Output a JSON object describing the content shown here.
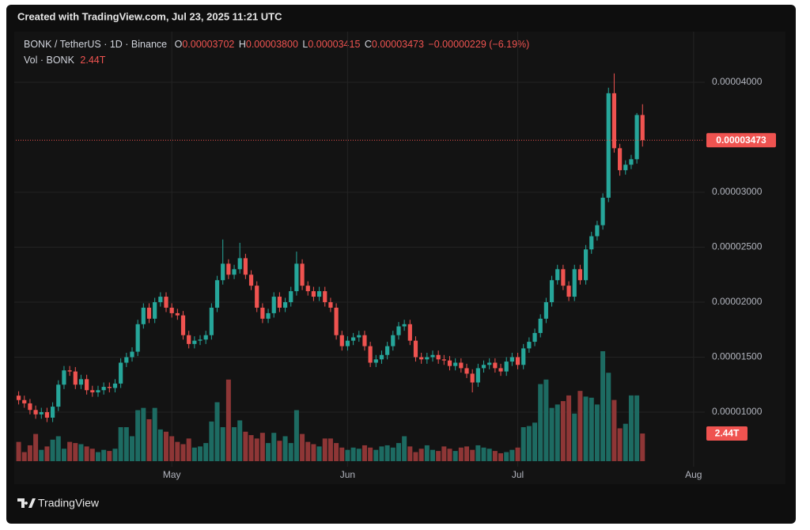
{
  "banner": "Created with TradingView.com, Jul 23, 2025 11:21 UTC",
  "footer": "TradingView",
  "chart_data": {
    "type": "candlestick",
    "symbol": "BONK / TetherUS · 1D · Binance",
    "ohlc_labels": [
      "O",
      "H",
      "L",
      "C"
    ],
    "last_bar_labels": {
      "open": "0.00003702",
      "high": "0.00003800",
      "low": "0.00003415",
      "close": "0.00003473"
    },
    "change": "−0.00000229 (−6.19%)",
    "up_color": "#26a69a",
    "down_color": "#ef5350",
    "grid": true,
    "xlim": [
      -0.5,
      120.7
    ],
    "xticks": [
      {
        "value": 27,
        "label": "May"
      },
      {
        "value": 58,
        "label": "Jun"
      },
      {
        "value": 88,
        "label": "Jul"
      },
      {
        "value": 119,
        "label": "Aug"
      }
    ],
    "ylim": [
      5.04e-06,
      4.46e-05
    ],
    "yticks": [
      {
        "value": 1e-05,
        "label": "0.00001000"
      },
      {
        "value": 1.5e-05,
        "label": "0.00001500"
      },
      {
        "value": 2e-05,
        "label": "0.00002000"
      },
      {
        "value": 2.5e-05,
        "label": "0.00002500"
      },
      {
        "value": 3e-05,
        "label": "0.00003000"
      },
      {
        "value": 4e-05,
        "label": "0.00004000"
      }
    ],
    "open": [
      1.15e-05,
      1.11e-05,
      1.08e-05,
      1.02e-05,
      9.8e-06,
      1e-05,
      9.5e-06,
      1.05e-05,
      1.25e-05,
      1.38e-05,
      1.37e-05,
      1.25e-05,
      1.3e-05,
      1.2e-05,
      1.18e-05,
      1.2e-05,
      1.23e-05,
      1.22e-05,
      1.26e-05,
      1.45e-05,
      1.5e-05,
      1.55e-05,
      1.8e-05,
      1.95e-05,
      1.85e-05,
      2e-05,
      2.05e-05,
      1.95e-05,
      1.9e-05,
      1.88e-05,
      1.7e-05,
      1.62e-05,
      1.65e-05,
      1.66e-05,
      1.7e-05,
      1.95e-05,
      2.2e-05,
      2.35e-05,
      2.25e-05,
      2.3e-05,
      2.4e-05,
      2.25e-05,
      2.15e-05,
      1.95e-05,
      1.85e-05,
      1.9e-05,
      2.05e-05,
      1.95e-05,
      2e-05,
      2.1e-05,
      2.35e-05,
      2.15e-05,
      2.1e-05,
      2.05e-05,
      2.1e-05,
      2e-05,
      1.95e-05,
      1.7e-05,
      1.6e-05,
      1.65e-05,
      1.68e-05,
      1.7e-05,
      1.6e-05,
      1.45e-05,
      1.48e-05,
      1.52e-05,
      1.6e-05,
      1.7e-05,
      1.78e-05,
      1.8e-05,
      1.65e-05,
      1.5e-05,
      1.48e-05,
      1.5e-05,
      1.52e-05,
      1.48e-05,
      1.47e-05,
      1.42e-05,
      1.45e-05,
      1.4e-05,
      1.35e-05,
      1.27e-05,
      1.4e-05,
      1.43e-05,
      1.45e-05,
      1.4e-05,
      1.37e-05,
      1.46e-05,
      1.5e-05,
      1.43e-05,
      1.58e-05,
      1.64e-05,
      1.72e-05,
      1.85e-05,
      2e-05,
      2.2e-05,
      2.3e-05,
      2.15e-05,
      2.05e-05,
      2.3e-05,
      2.2e-05,
      2.48e-05,
      2.6e-05,
      2.7e-05,
      2.95e-05,
      3.9e-05,
      3.4e-05,
      3.2e-05,
      3.25e-05,
      3.3e-05,
      3.702e-05
    ],
    "high": [
      1.19e-05,
      1.15e-05,
      1.12e-05,
      1.06e-05,
      1.04e-05,
      1.04e-05,
      1.09e-05,
      1.29e-05,
      1.42e-05,
      1.42e-05,
      1.41e-05,
      1.34e-05,
      1.34e-05,
      1.24e-05,
      1.24e-05,
      1.27e-05,
      1.27e-05,
      1.3e-05,
      1.49e-05,
      1.54e-05,
      1.59e-05,
      1.84e-05,
      1.99e-05,
      1.99e-05,
      2.04e-05,
      2.09e-05,
      2.09e-05,
      1.99e-05,
      1.94e-05,
      1.92e-05,
      1.74e-05,
      1.69e-05,
      1.7e-05,
      1.74e-05,
      1.99e-05,
      2.24e-05,
      2.57e-05,
      2.39e-05,
      2.34e-05,
      2.54e-05,
      2.44e-05,
      2.29e-05,
      2.19e-05,
      1.99e-05,
      1.94e-05,
      2.09e-05,
      2.09e-05,
      2.04e-05,
      2.14e-05,
      2.46e-05,
      2.39e-05,
      2.19e-05,
      2.14e-05,
      2.14e-05,
      2.14e-05,
      2.04e-05,
      1.99e-05,
      1.74e-05,
      1.69e-05,
      1.72e-05,
      1.74e-05,
      1.74e-05,
      1.64e-05,
      1.52e-05,
      1.56e-05,
      1.64e-05,
      1.74e-05,
      1.82e-05,
      1.84e-05,
      1.84e-05,
      1.69e-05,
      1.54e-05,
      1.54e-05,
      1.56e-05,
      1.56e-05,
      1.52e-05,
      1.51e-05,
      1.49e-05,
      1.49e-05,
      1.44e-05,
      1.39e-05,
      1.44e-05,
      1.47e-05,
      1.49e-05,
      1.49e-05,
      1.44e-05,
      1.5e-05,
      1.54e-05,
      1.54e-05,
      1.62e-05,
      1.68e-05,
      1.76e-05,
      1.89e-05,
      2.04e-05,
      2.24e-05,
      2.34e-05,
      2.34e-05,
      2.19e-05,
      2.34e-05,
      2.34e-05,
      2.52e-05,
      2.64e-05,
      2.74e-05,
      2.99e-05,
      3.95e-05,
      4.08e-05,
      3.44e-05,
      3.29e-05,
      3.34e-05,
      3.72e-05,
      3.8e-05
    ],
    "low": [
      1.07e-05,
      1.04e-05,
      9.8e-06,
      9.4e-06,
      9.4e-06,
      9.1e-06,
      9.1e-06,
      1.01e-05,
      1.21e-05,
      1.33e-05,
      1.21e-05,
      1.21e-05,
      1.16e-05,
      1.14e-05,
      1.14e-05,
      1.16e-05,
      1.18e-05,
      1.18e-05,
      1.22e-05,
      1.41e-05,
      1.46e-05,
      1.51e-05,
      1.76e-05,
      1.81e-05,
      1.81e-05,
      1.96e-05,
      1.91e-05,
      1.86e-05,
      1.84e-05,
      1.66e-05,
      1.58e-05,
      1.58e-05,
      1.61e-05,
      1.62e-05,
      1.66e-05,
      1.91e-05,
      2.16e-05,
      2.21e-05,
      2.21e-05,
      2.26e-05,
      2.21e-05,
      2.11e-05,
      1.91e-05,
      1.81e-05,
      1.81e-05,
      1.86e-05,
      1.91e-05,
      1.91e-05,
      1.96e-05,
      2.06e-05,
      2.11e-05,
      2.06e-05,
      2.01e-05,
      2.01e-05,
      1.96e-05,
      1.91e-05,
      1.66e-05,
      1.56e-05,
      1.56e-05,
      1.61e-05,
      1.64e-05,
      1.56e-05,
      1.41e-05,
      1.41e-05,
      1.44e-05,
      1.48e-05,
      1.56e-05,
      1.66e-05,
      1.74e-05,
      1.61e-05,
      1.46e-05,
      1.44e-05,
      1.44e-05,
      1.46e-05,
      1.44e-05,
      1.43e-05,
      1.38e-05,
      1.38e-05,
      1.36e-05,
      1.31e-05,
      1.18e-05,
      1.23e-05,
      1.36e-05,
      1.39e-05,
      1.36e-05,
      1.33e-05,
      1.33e-05,
      1.42e-05,
      1.39e-05,
      1.39e-05,
      1.54e-05,
      1.6e-05,
      1.68e-05,
      1.81e-05,
      1.96e-05,
      2.16e-05,
      2.11e-05,
      2.01e-05,
      2.01e-05,
      2.16e-05,
      2.16e-05,
      2.44e-05,
      2.56e-05,
      2.66e-05,
      2.91e-05,
      3.36e-05,
      3.15e-05,
      3.16e-05,
      3.21e-05,
      3.26e-05,
      3.415e-05
    ],
    "close": [
      1.11e-05,
      1.08e-05,
      1.02e-05,
      9.8e-06,
      1e-05,
      9.5e-06,
      1.05e-05,
      1.25e-05,
      1.38e-05,
      1.37e-05,
      1.25e-05,
      1.3e-05,
      1.2e-05,
      1.18e-05,
      1.2e-05,
      1.23e-05,
      1.22e-05,
      1.26e-05,
      1.45e-05,
      1.5e-05,
      1.55e-05,
      1.8e-05,
      1.95e-05,
      1.85e-05,
      2e-05,
      2.05e-05,
      1.95e-05,
      1.9e-05,
      1.88e-05,
      1.7e-05,
      1.62e-05,
      1.65e-05,
      1.66e-05,
      1.7e-05,
      1.95e-05,
      2.2e-05,
      2.35e-05,
      2.25e-05,
      2.3e-05,
      2.4e-05,
      2.25e-05,
      2.15e-05,
      1.95e-05,
      1.85e-05,
      1.9e-05,
      2.05e-05,
      1.95e-05,
      2e-05,
      2.1e-05,
      2.35e-05,
      2.15e-05,
      2.1e-05,
      2.05e-05,
      2.1e-05,
      2e-05,
      1.95e-05,
      1.7e-05,
      1.6e-05,
      1.65e-05,
      1.68e-05,
      1.7e-05,
      1.6e-05,
      1.45e-05,
      1.48e-05,
      1.52e-05,
      1.6e-05,
      1.7e-05,
      1.78e-05,
      1.8e-05,
      1.65e-05,
      1.5e-05,
      1.48e-05,
      1.5e-05,
      1.52e-05,
      1.48e-05,
      1.47e-05,
      1.42e-05,
      1.45e-05,
      1.4e-05,
      1.35e-05,
      1.27e-05,
      1.4e-05,
      1.43e-05,
      1.45e-05,
      1.4e-05,
      1.37e-05,
      1.46e-05,
      1.5e-05,
      1.43e-05,
      1.58e-05,
      1.64e-05,
      1.72e-05,
      1.85e-05,
      2e-05,
      2.2e-05,
      2.3e-05,
      2.15e-05,
      2.05e-05,
      2.3e-05,
      2.2e-05,
      2.48e-05,
      2.6e-05,
      2.7e-05,
      2.95e-05,
      3.9e-05,
      3.4e-05,
      3.2e-05,
      3.25e-05,
      3.3e-05,
      3.702e-05,
      3.473e-05
    ],
    "volume": {
      "name": "Vol · BONK",
      "up_color": "#1d6b62",
      "down_color": "#8e3636",
      "last_value_label": "2.44T",
      "values": [
        1.7,
        0.8,
        1.4,
        2.4,
        1.0,
        1.3,
        1.9,
        2.2,
        1.1,
        1.7,
        1.6,
        1.5,
        1.3,
        1.1,
        0.8,
        1.0,
        0.9,
        1.1,
        3.0,
        3.0,
        2.2,
        4.5,
        4.7,
        3.7,
        4.7,
        2.8,
        2.6,
        2.2,
        1.7,
        1.5,
        2.0,
        1.2,
        1.3,
        1.6,
        3.5,
        5.2,
        3.0,
        7.2,
        3.0,
        3.6,
        2.6,
        2.3,
        2.0,
        2.5,
        1.6,
        2.5,
        1.8,
        2.2,
        1.6,
        4.5,
        2.4,
        1.7,
        1.5,
        1.3,
        2.0,
        2.0,
        1.6,
        1.2,
        1.0,
        1.2,
        1.1,
        1.4,
        1.2,
        1.0,
        1.3,
        1.4,
        1.2,
        1.6,
        2.2,
        1.3,
        0.8,
        1.1,
        1.4,
        1.0,
        0.9,
        1.3,
        1.1,
        0.9,
        1.2,
        1.3,
        1.0,
        1.4,
        1.2,
        1.1,
        0.9,
        0.7,
        0.8,
        1.0,
        1.2,
        3.0,
        3.1,
        3.4,
        6.8,
        7.2,
        4.7,
        5.0,
        5.3,
        5.8,
        4.2,
        6.2,
        5.7,
        5.6,
        5.0,
        9.7,
        7.8,
        5.4,
        2.9,
        3.3,
        5.8,
        5.8,
        2.44
      ]
    }
  }
}
